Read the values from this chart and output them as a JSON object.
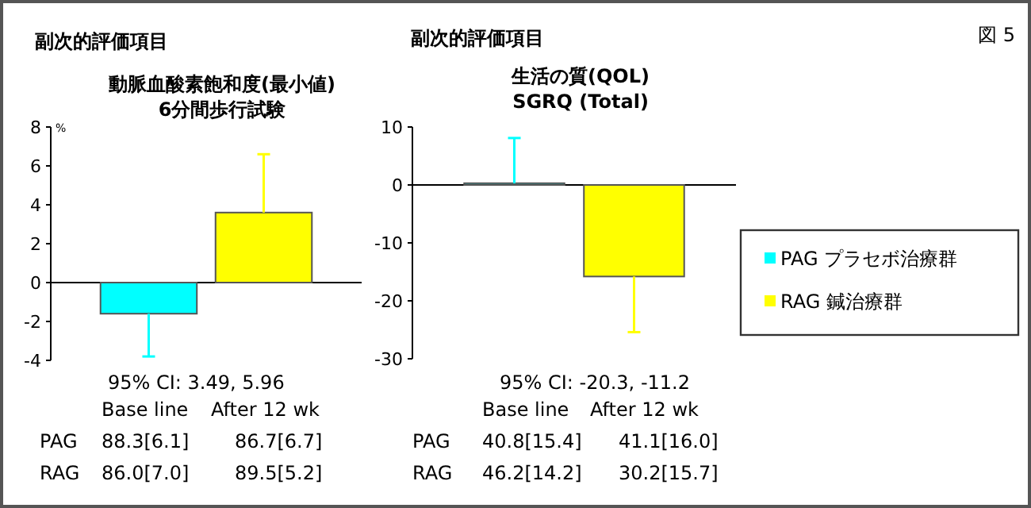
{
  "chart_data": [
    {
      "type": "bar",
      "title": "副次的評価項目",
      "subtitle": "動脈血酸素飽和度(最小値)\n6分間歩行試験",
      "ylabel": "%",
      "categories": [
        null
      ],
      "ylim": [
        -4,
        8
      ],
      "yticks": [
        -4,
        -2,
        0,
        2,
        4,
        6,
        8
      ],
      "series": [
        {
          "color": "#00ffff",
          "values": [
            -1.6
          ],
          "errors": [
            [
              -3.8,
              -1.6
            ]
          ]
        },
        {
          "color": "#ffff00",
          "values": [
            3.6
          ],
          "errors": [
            [
              3.6,
              6.6
            ]
          ]
        }
      ],
      "annotations": [
        "95% CI: 3.49, 5.96",
        "Base line",
        "After 12 wk",
        "PAG",
        "88.3[6.1]",
        "86.7[6.7]",
        "RAG",
        "86.0[7.0]",
        "89.5[5.2]"
      ]
    },
    {
      "type": "bar",
      "title": "副次的評価項目",
      "subtitle": "生活の質(QOL)\nSGRQ (Total)",
      "categories": [
        null
      ],
      "ylim": [
        -30,
        10
      ],
      "yticks": [
        -30,
        -20,
        -10,
        0,
        10
      ],
      "legend": "right",
      "series": [
        {
          "name": "PAG プラセボ治療群",
          "color": "#00ffff",
          "values": [
            0.3
          ],
          "errors": [
            [
              0.3,
              8.1
            ]
          ]
        },
        {
          "name": "RAG 鍼治療群",
          "color": "#ffff00",
          "values": [
            -15.8
          ],
          "errors": [
            [
              -25.4,
              -15.8
            ]
          ]
        }
      ],
      "annotations": [
        "95% CI: -20.3, -11.2",
        "Base line",
        "After 12 wk",
        "PAG",
        "40.8[15.4]",
        "41.1[16.0]",
        "RAG",
        "46.2[14.2]",
        "30.2[15.7]",
        "図 5"
      ]
    }
  ]
}
